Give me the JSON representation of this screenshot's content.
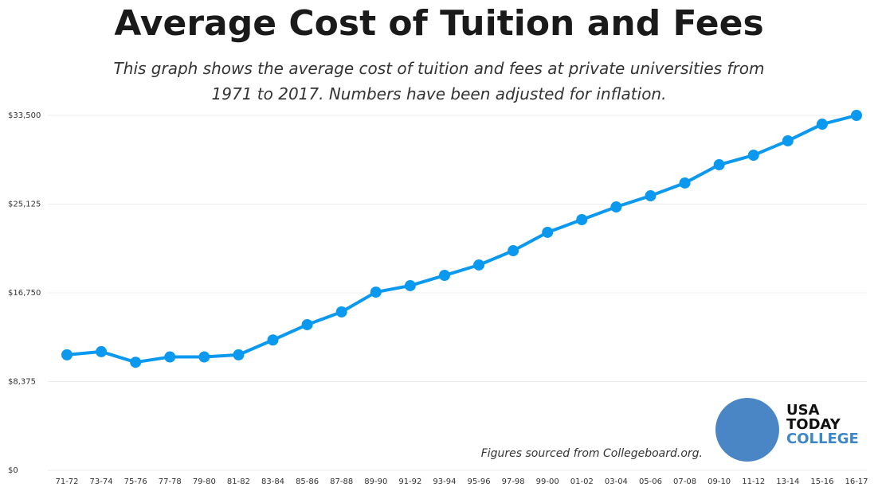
{
  "chart_data": {
    "type": "line",
    "title": "Average Cost of Tuition and Fees",
    "subtitle": "This graph shows the average cost of tuition and fees at private universities from 1971 to 2017. Numbers have been adjusted for inflation.",
    "categories": [
      "71-72",
      "73-74",
      "75-76",
      "77-78",
      "79-80",
      "81-82",
      "83-84",
      "85-86",
      "87-88",
      "89-90",
      "91-92",
      "93-94",
      "95-96",
      "97-98",
      "99-00",
      "01-02",
      "03-04",
      "05-06",
      "07-08",
      "09-10",
      "11-12",
      "13-14",
      "15-16",
      "16-17"
    ],
    "values": [
      10900,
      11200,
      10200,
      10700,
      10700,
      10900,
      12300,
      13750,
      14950,
      16820,
      17430,
      18400,
      19380,
      20730,
      22460,
      23660,
      24860,
      25910,
      27120,
      28840,
      29740,
      31100,
      32670,
      33500
    ],
    "color": "#0a99ef",
    "ylim": [
      0,
      33500
    ],
    "yticks": [
      {
        "value": 0,
        "label": "$0"
      },
      {
        "value": 8375,
        "label": "$8,375"
      },
      {
        "value": 16750,
        "label": "$16,750"
      },
      {
        "value": 25125,
        "label": "$25,125"
      },
      {
        "value": 33500,
        "label": "$33,500"
      }
    ],
    "grid": true,
    "source": "Figures sourced from Collegeboard.org.",
    "logo": [
      "USA",
      "TODAY",
      "COLLEGE"
    ]
  }
}
